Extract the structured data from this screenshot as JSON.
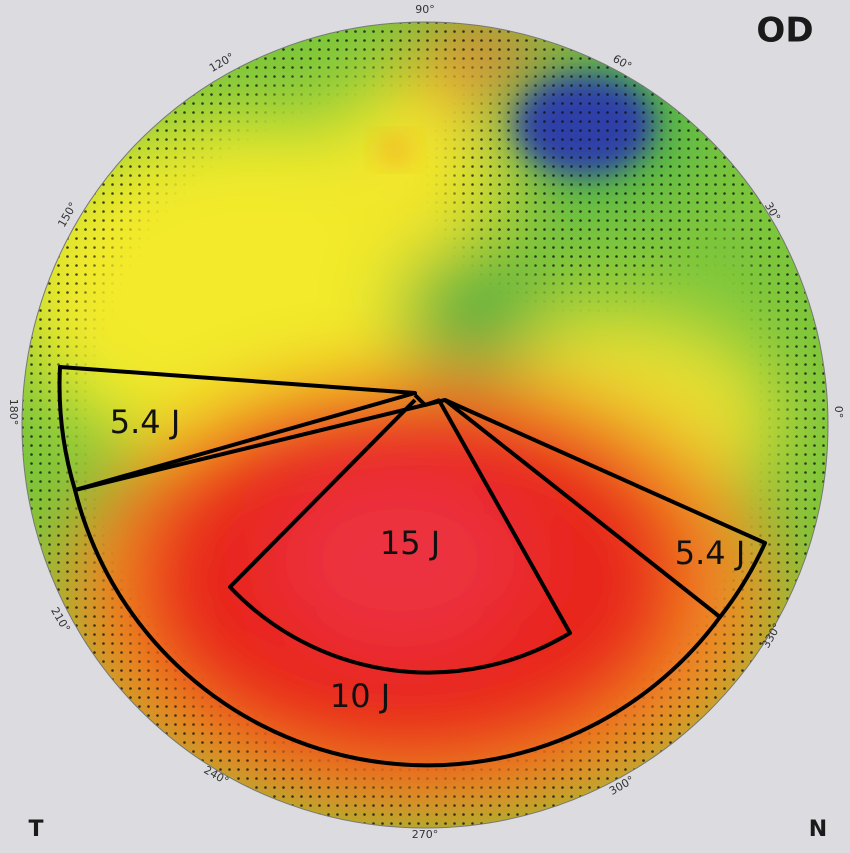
{
  "eye": "OD",
  "corner_left": "T",
  "corner_right": "N",
  "angle_labels": [
    "90°",
    "60°",
    "30°",
    "0°",
    "330°",
    "300°",
    "270°",
    "240°",
    "210°",
    "180°",
    "150°",
    "120°"
  ],
  "zones": [
    {
      "label": "5.4 J"
    },
    {
      "label": "15 J"
    },
    {
      "label": "10 J"
    },
    {
      "label": "5.4 J"
    }
  ]
}
